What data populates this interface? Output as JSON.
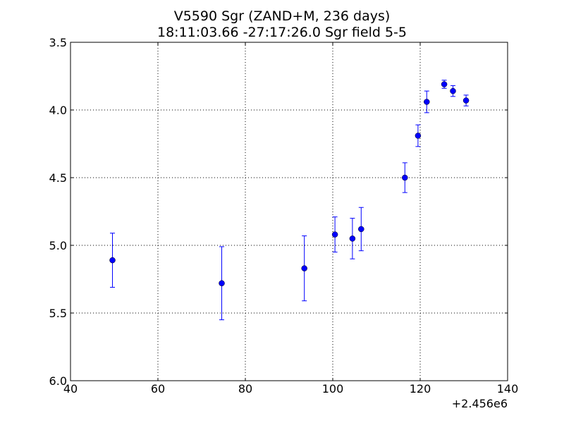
{
  "chart_data": {
    "type": "scatter",
    "title": "V5590 Sgr (ZAND+M, 236 days)",
    "subtitle": "18:11:03.66 -27:17:26.0 Sgr field 5-5",
    "xlabel": "",
    "ylabel": "",
    "x_offset_label": "+2.456e6",
    "xlim": [
      40,
      140
    ],
    "ylim": [
      6.0,
      3.5
    ],
    "y_inverted": true,
    "grid": true,
    "x_ticks": [
      40,
      60,
      80,
      100,
      120,
      140
    ],
    "x_tick_labels": [
      "40",
      "60",
      "80",
      "100",
      "120",
      "140"
    ],
    "y_ticks": [
      3.5,
      4.0,
      4.5,
      5.0,
      5.5,
      6.0
    ],
    "y_tick_labels": [
      "3.5",
      "4.0",
      "4.5",
      "5.0",
      "5.5",
      "6.0"
    ],
    "color": "#0000ff",
    "points": [
      {
        "x": 49.6,
        "y": 5.11,
        "err": 0.2
      },
      {
        "x": 74.6,
        "y": 5.28,
        "err": 0.27
      },
      {
        "x": 93.5,
        "y": 5.17,
        "err": 0.24
      },
      {
        "x": 100.5,
        "y": 4.92,
        "err": 0.13
      },
      {
        "x": 104.5,
        "y": 4.95,
        "err": 0.15
      },
      {
        "x": 106.5,
        "y": 4.88,
        "err": 0.16
      },
      {
        "x": 116.5,
        "y": 4.5,
        "err": 0.11
      },
      {
        "x": 119.5,
        "y": 4.19,
        "err": 0.08
      },
      {
        "x": 121.5,
        "y": 3.94,
        "err": 0.08
      },
      {
        "x": 125.5,
        "y": 3.81,
        "err": 0.03
      },
      {
        "x": 127.5,
        "y": 3.86,
        "err": 0.04
      },
      {
        "x": 130.5,
        "y": 3.93,
        "err": 0.04
      }
    ]
  }
}
